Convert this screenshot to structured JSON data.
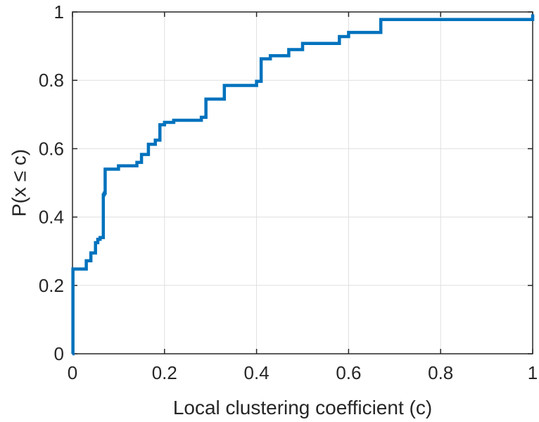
{
  "chart_data": {
    "type": "line",
    "title": "",
    "xlabel": "Local clustering coefficient (c)",
    "ylabel": "P(x ≤ c)",
    "xlim": [
      0,
      1
    ],
    "ylim": [
      0,
      1
    ],
    "xticks": [
      0,
      0.2,
      0.4,
      0.6,
      0.8,
      1
    ],
    "yticks": [
      0,
      0.2,
      0.4,
      0.6,
      0.8,
      1
    ],
    "xtick_labels": [
      "0",
      "0.2",
      "0.4",
      "0.6",
      "0.8",
      "1"
    ],
    "ytick_labels": [
      "0",
      "0.2",
      "0.4",
      "0.6",
      "0.8",
      "1"
    ],
    "grid": true,
    "legend": false,
    "series": [
      {
        "color": "#0072BD",
        "step": "post",
        "x": [
          0,
          0.001,
          0.03,
          0.04,
          0.05,
          0.055,
          0.06,
          0.067,
          0.069,
          0.071,
          0.1,
          0.14,
          0.15,
          0.165,
          0.18,
          0.19,
          0.2,
          0.22,
          0.28,
          0.29,
          0.33,
          0.4,
          0.41,
          0.43,
          0.47,
          0.5,
          0.58,
          0.6,
          0.67,
          1
        ],
        "y": [
          0,
          0.248,
          0.272,
          0.295,
          0.325,
          0.335,
          0.34,
          0.465,
          0.47,
          0.54,
          0.55,
          0.56,
          0.583,
          0.613,
          0.625,
          0.67,
          0.677,
          0.683,
          0.692,
          0.745,
          0.785,
          0.797,
          0.863,
          0.872,
          0.89,
          0.908,
          0.928,
          0.94,
          0.978,
          0.993
        ]
      }
    ]
  }
}
